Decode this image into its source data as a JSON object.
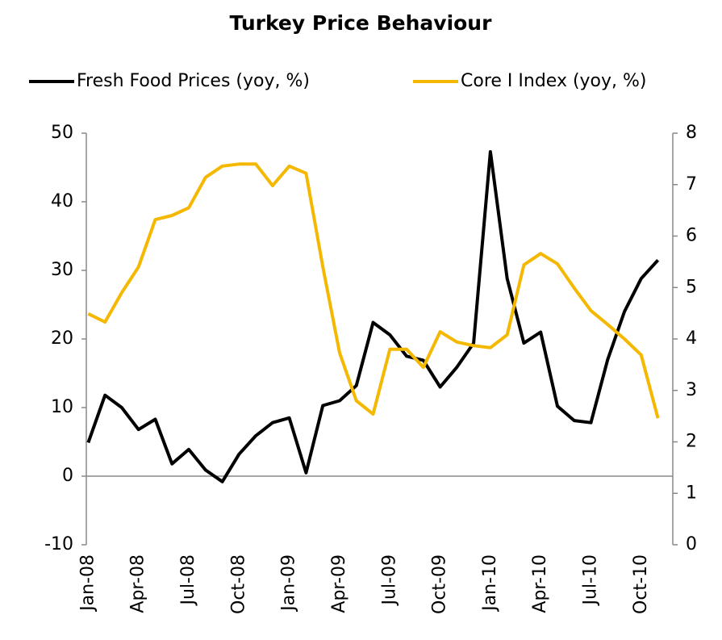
{
  "chart_data": {
    "type": "line",
    "title": "Turkey Price Behaviour",
    "categories": [
      "Jan-08",
      null,
      null,
      "Apr-08",
      null,
      null,
      "Jul-08",
      null,
      null,
      "Oct-08",
      null,
      null,
      "Jan-09",
      null,
      null,
      "Apr-09",
      null,
      null,
      "Jul-09",
      null,
      null,
      "Oct-09",
      null,
      null,
      "Jan-10",
      null,
      null,
      "Apr-10",
      null,
      null,
      "Jul-10",
      null,
      null,
      "Oct-10",
      null
    ],
    "series": [
      {
        "name": "Fresh Food Prices (yoy, %)",
        "color": "#000000",
        "axis": "y",
        "values": [
          4.9,
          11.8,
          10,
          6.8,
          8.3,
          1.8,
          3.9,
          0.9,
          -0.8,
          3.2,
          5.9,
          7.8,
          8.5,
          0.5,
          10.3,
          11,
          13.2,
          22.4,
          20.6,
          17.5,
          16.9,
          13,
          15.9,
          19.4,
          47.3,
          28.8,
          19.4,
          21,
          10.2,
          8.1,
          7.8,
          17,
          24,
          28.8,
          31.5
        ]
      },
      {
        "name": "Core I Index (yoy, %)",
        "color": "#f5b800",
        "axis": "y2",
        "values": [
          4.49,
          4.33,
          4.9,
          5.4,
          6.32,
          6.4,
          6.55,
          7.14,
          7.36,
          7.4,
          7.4,
          6.98,
          7.36,
          7.22,
          5.4,
          3.73,
          2.8,
          2.54,
          3.8,
          3.8,
          3.45,
          4.14,
          3.94,
          3.87,
          3.83,
          4.08,
          5.44,
          5.66,
          5.46,
          4.99,
          4.55,
          4.28,
          4.0,
          3.69,
          2.46
        ]
      }
    ],
    "ylim": [
      -10,
      50
    ],
    "yticks": [
      -10,
      0,
      10,
      20,
      30,
      40,
      50
    ],
    "y2lim": [
      0,
      8
    ],
    "y2ticks": [
      0,
      1,
      2,
      3,
      4,
      5,
      6,
      7,
      8
    ],
    "legend": "top"
  }
}
